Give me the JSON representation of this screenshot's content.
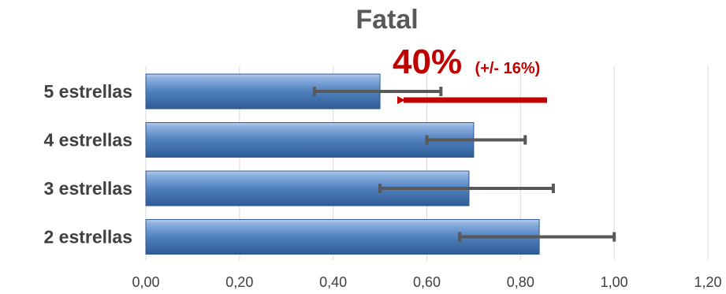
{
  "chart_data": {
    "type": "bar",
    "orientation": "horizontal",
    "title": "Fatal",
    "categories": [
      "5 estrellas",
      "4 estrellas",
      "3 estrellas",
      "2 estrellas"
    ],
    "values": [
      0.5,
      0.7,
      0.69,
      0.84
    ],
    "error_bars": [
      [
        0.36,
        0.63
      ],
      [
        0.6,
        0.81
      ],
      [
        0.5,
        0.87
      ],
      [
        0.67,
        1.0
      ]
    ],
    "xlim": [
      0,
      1.2
    ],
    "xticks": [
      "0,00",
      "0,20",
      "0,40",
      "0,60",
      "0,80",
      "1,00",
      "1,20"
    ],
    "grid": "vertical",
    "bar_color": "#4f81bd",
    "error_bar_color": "#595959",
    "annotation": {
      "text": "40%",
      "subtext": "(+/- 16%)",
      "target": "5 estrellas",
      "color": "#c00000"
    }
  }
}
